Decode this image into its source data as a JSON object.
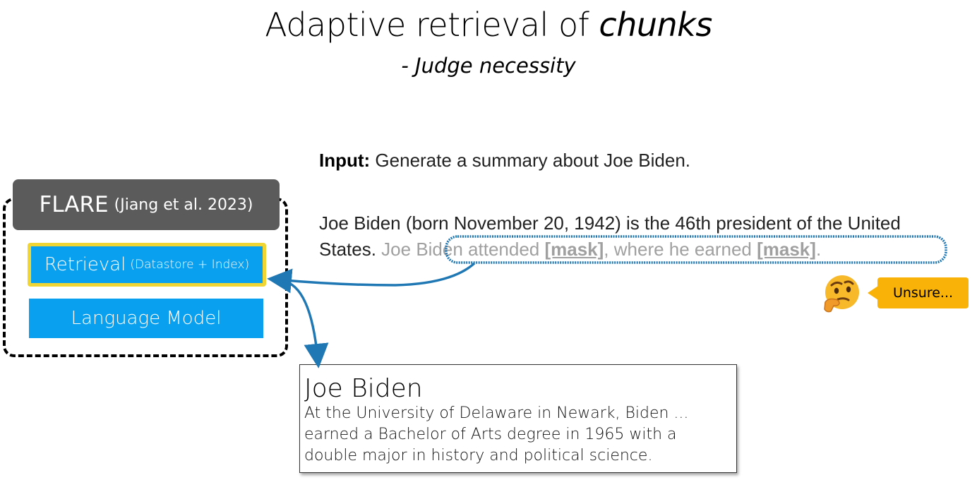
{
  "title": {
    "main": "Adaptive retrieval of ",
    "emph": "chunks",
    "subtitle": "- Judge necessity"
  },
  "flare": {
    "name": "FLARE",
    "citation": "(Jiang et al. 2023)",
    "retrieval_label": "Retrieval",
    "retrieval_sub": "(Datastore + Index)",
    "lm_label": "Language Model"
  },
  "input": {
    "label": "Input:",
    "text": "Generate a summary about Joe Biden."
  },
  "output": {
    "text_plain": "Joe Biden (born November 20, 1942) is the 46th president of the United States.",
    "masked_a": "Joe Biden attended ",
    "mask1": "[mask]",
    "masked_b": ", where he earned ",
    "mask2": "[mask]",
    "masked_end": "."
  },
  "reaction": {
    "icon": "thinking-face-icon",
    "text": "Unsure..."
  },
  "retrieved_doc": {
    "title": "Joe Biden",
    "line1": "At the University of Delaware in Newark, Biden ...",
    "line2": "earned a Bachelor of Arts degree in 1965 with a",
    "line3": "double major in history and political science."
  },
  "colors": {
    "retrieval_blue": "#0aa0f0",
    "highlight_yellow": "#f1d532",
    "header_gray": "#5b5b5b",
    "arrow_blue": "#1f77b4",
    "badge_orange": "#f9b208"
  }
}
